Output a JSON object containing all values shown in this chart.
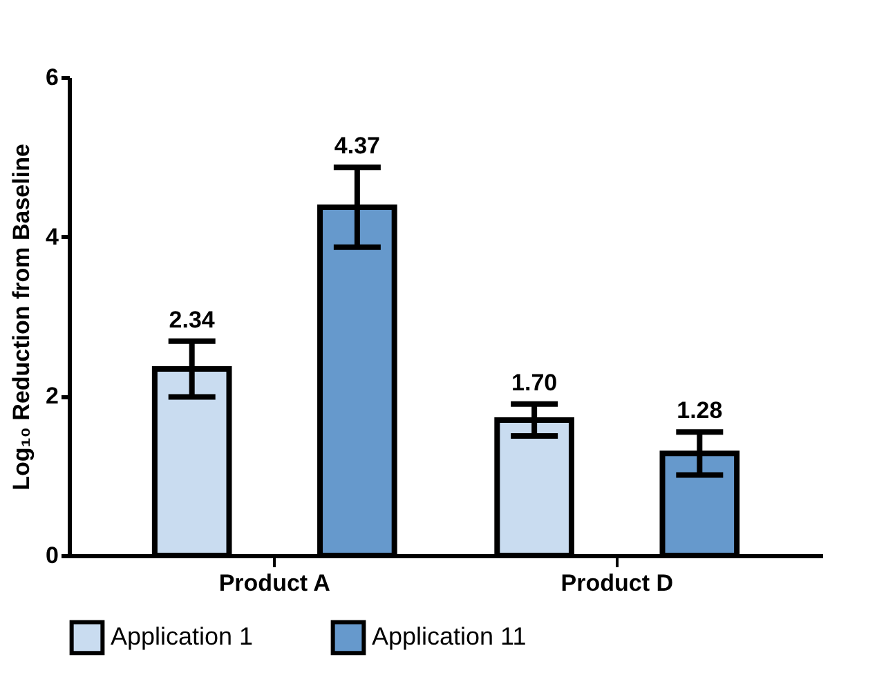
{
  "chart_data": {
    "type": "bar",
    "ylabel": "Log₁₀ Reduction from Baseline",
    "categories": [
      "Product A",
      "Product D"
    ],
    "series": [
      {
        "name": "Application 1",
        "color": "#c9dcf0",
        "values": [
          2.34,
          1.7
        ],
        "errors": [
          0.35,
          0.2
        ],
        "value_labels": [
          "2.34",
          "1.70"
        ]
      },
      {
        "name": "Application 11",
        "color": "#6699cc",
        "values": [
          4.37,
          1.28
        ],
        "errors": [
          0.5,
          0.27
        ],
        "value_labels": [
          "4.37",
          "1.28"
        ]
      }
    ],
    "ylim": [
      0,
      6
    ],
    "yticks": [
      0,
      2,
      4,
      6
    ],
    "legend": "bottom"
  }
}
